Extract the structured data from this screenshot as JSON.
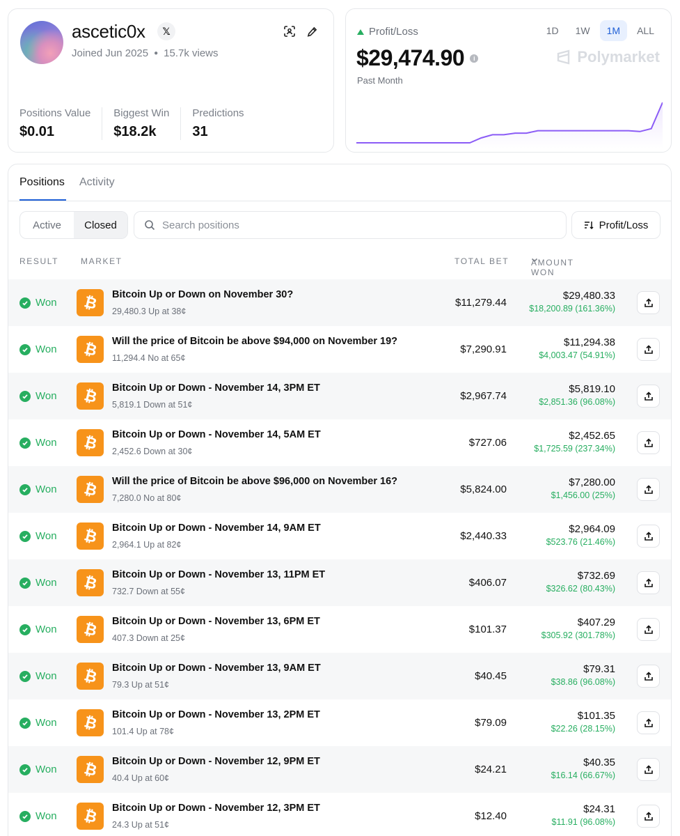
{
  "profile": {
    "username": "ascetic0x",
    "x_label": "𝕏",
    "joined": "Joined Jun 2025",
    "views": "15.7k views",
    "icons": [
      "scan-icon",
      "pencil-icon"
    ],
    "stats": [
      {
        "label": "Positions Value",
        "value": "$0.01"
      },
      {
        "label": "Biggest Win",
        "value": "$18.2k"
      },
      {
        "label": "Predictions",
        "value": "31"
      }
    ]
  },
  "pnl": {
    "label": "Profit/Loss",
    "value": "$29,474.90",
    "period": "Past Month",
    "brand": "Polymarket",
    "ranges": [
      "1D",
      "1W",
      "1M",
      "ALL"
    ],
    "active_range": "1M",
    "colors": {
      "line": "#8b5cf6",
      "up": "#27ae60"
    },
    "chart_data": {
      "type": "area",
      "series": [
        {
          "values": [
            0,
            0,
            0,
            0,
            0,
            0,
            0,
            0,
            0,
            0,
            0,
            0.12,
            0.2,
            0.2,
            0.24,
            0.24,
            0.3,
            0.3,
            0.3,
            0.3,
            0.3,
            0.3,
            0.3,
            0.3,
            0.3,
            0.28,
            0.35,
            1.0
          ]
        }
      ]
    }
  },
  "positions": {
    "tabs": [
      "Positions",
      "Activity"
    ],
    "filters": [
      "Active",
      "Closed"
    ],
    "active_filter": "Closed",
    "search_placeholder": "Search positions",
    "sort_label": "Profit/Loss",
    "headers": {
      "result": "RESULT",
      "market": "MARKET",
      "total_bet": "TOTAL BET",
      "amount_won": "AMOUNT WON"
    },
    "rows": [
      {
        "result": "Won",
        "title": "Bitcoin Up or Down on November 30?",
        "sub": "29,480.3 Up at 38¢",
        "total": "$11,279.44",
        "won": "$29,480.33",
        "gain": "$18,200.89 (161.36%)"
      },
      {
        "result": "Won",
        "title": "Will the price of Bitcoin be above $94,000 on November 19?",
        "sub": "11,294.4 No at 65¢",
        "total": "$7,290.91",
        "won": "$11,294.38",
        "gain": "$4,003.47 (54.91%)"
      },
      {
        "result": "Won",
        "title": "Bitcoin Up or Down - November 14, 3PM ET",
        "sub": "5,819.1 Down at 51¢",
        "total": "$2,967.74",
        "won": "$5,819.10",
        "gain": "$2,851.36 (96.08%)"
      },
      {
        "result": "Won",
        "title": "Bitcoin Up or Down - November 14, 5AM ET",
        "sub": "2,452.6 Down at 30¢",
        "total": "$727.06",
        "won": "$2,452.65",
        "gain": "$1,725.59 (237.34%)"
      },
      {
        "result": "Won",
        "title": "Will the price of Bitcoin be above $96,000 on November 16?",
        "sub": "7,280.0 No at 80¢",
        "total": "$5,824.00",
        "won": "$7,280.00",
        "gain": "$1,456.00 (25%)"
      },
      {
        "result": "Won",
        "title": "Bitcoin Up or Down - November 14, 9AM ET",
        "sub": "2,964.1 Up at 82¢",
        "total": "$2,440.33",
        "won": "$2,964.09",
        "gain": "$523.76 (21.46%)"
      },
      {
        "result": "Won",
        "title": "Bitcoin Up or Down - November 13, 11PM ET",
        "sub": "732.7 Down at 55¢",
        "total": "$406.07",
        "won": "$732.69",
        "gain": "$326.62 (80.43%)"
      },
      {
        "result": "Won",
        "title": "Bitcoin Up or Down - November 13, 6PM ET",
        "sub": "407.3 Down at 25¢",
        "total": "$101.37",
        "won": "$407.29",
        "gain": "$305.92 (301.78%)"
      },
      {
        "result": "Won",
        "title": "Bitcoin Up or Down - November 13, 9AM ET",
        "sub": "79.3 Up at 51¢",
        "total": "$40.45",
        "won": "$79.31",
        "gain": "$38.86 (96.08%)"
      },
      {
        "result": "Won",
        "title": "Bitcoin Up or Down - November 13, 2PM ET",
        "sub": "101.4 Up at 78¢",
        "total": "$79.09",
        "won": "$101.35",
        "gain": "$22.26 (28.15%)"
      },
      {
        "result": "Won",
        "title": "Bitcoin Up or Down - November 12, 9PM ET",
        "sub": "40.4 Up at 60¢",
        "total": "$24.21",
        "won": "$40.35",
        "gain": "$16.14 (66.67%)"
      },
      {
        "result": "Won",
        "title": "Bitcoin Up or Down - November 12, 3PM ET",
        "sub": "24.3 Up at 51¢",
        "total": "$12.40",
        "won": "$24.31",
        "gain": "$11.91 (96.08%)"
      }
    ]
  }
}
